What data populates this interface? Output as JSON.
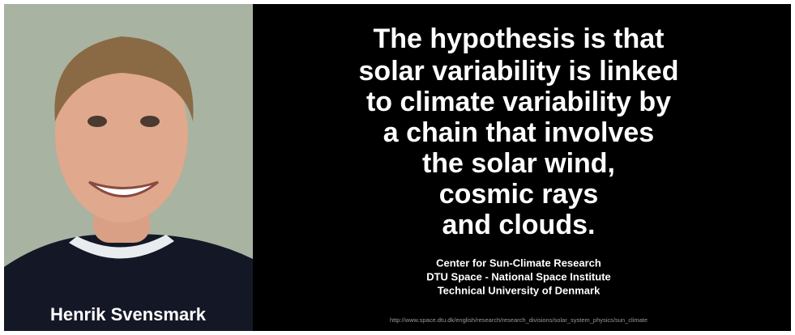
{
  "quote": {
    "lines": [
      "The hypothesis is that",
      "solar variability is linked",
      "to climate variability by",
      "a chain that involves",
      "the solar wind,",
      "cosmic rays",
      "and clouds."
    ]
  },
  "person": {
    "name": "Henrik Svensmark"
  },
  "credits": [
    "Center for Sun-Climate Research",
    "DTU Space - National Space Institute",
    "Technical University of Denmark"
  ],
  "url": "http://www.space.dtu.dk/english/research/research_divisions/solar_system_physics/sun_climate"
}
